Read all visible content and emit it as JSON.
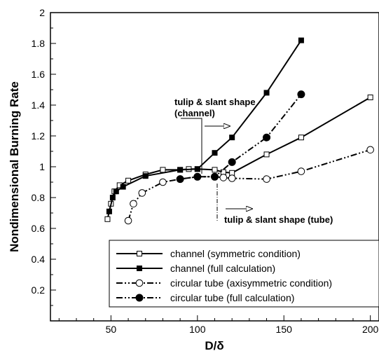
{
  "chart_data": {
    "type": "line",
    "xlabel": "D/δ",
    "ylabel": "Nondimensional Burning Rate",
    "xlim": [
      15,
      205
    ],
    "ylim": [
      0,
      2
    ],
    "x_ticks": [
      50,
      100,
      150,
      200
    ],
    "y_ticks": [
      0.2,
      0.4,
      0.6,
      0.8,
      1,
      1.2,
      1.4,
      1.6,
      1.8,
      2
    ],
    "grid": false,
    "legend_position": "bottom-right",
    "series": [
      {
        "name": "channel (symmetric condition)",
        "line": "solid",
        "marker": "square-open",
        "x": [
          48,
          50,
          52,
          55,
          60,
          70,
          80,
          90,
          95,
          100,
          110,
          115,
          120,
          140,
          160,
          200
        ],
        "y": [
          0.66,
          0.76,
          0.84,
          0.88,
          0.91,
          0.95,
          0.98,
          0.98,
          0.985,
          0.985,
          0.98,
          0.965,
          0.96,
          1.08,
          1.19,
          1.45
        ]
      },
      {
        "name": "channel (full calculation)",
        "line": "solid",
        "marker": "square-filled",
        "x": [
          49,
          51,
          53,
          57,
          70,
          90,
          100,
          110,
          120,
          140,
          160
        ],
        "y": [
          0.71,
          0.8,
          0.84,
          0.87,
          0.94,
          0.98,
          0.985,
          1.09,
          1.19,
          1.48,
          1.82
        ]
      },
      {
        "name": "circular tube (axisymmetric condition)",
        "line": "dash-dot-dot",
        "marker": "circle-open",
        "x": [
          60,
          63,
          68,
          80,
          90,
          100,
          110,
          115,
          120,
          140,
          160,
          200
        ],
        "y": [
          0.65,
          0.76,
          0.83,
          0.9,
          0.92,
          0.935,
          0.935,
          0.93,
          0.925,
          0.92,
          0.97,
          1.11
        ]
      },
      {
        "name": "circular tube (full calculation)",
        "line": "dash-dot-dot",
        "marker": "circle-filled",
        "x": [
          90,
          100,
          110,
          120,
          140,
          160
        ],
        "y": [
          0.92,
          0.935,
          0.935,
          1.03,
          1.19,
          1.47
        ]
      }
    ],
    "annotations": [
      {
        "line1": "tulip & slant shape",
        "line2": "(channel)"
      },
      {
        "text": "tulip & slant shape (tube)"
      }
    ]
  }
}
